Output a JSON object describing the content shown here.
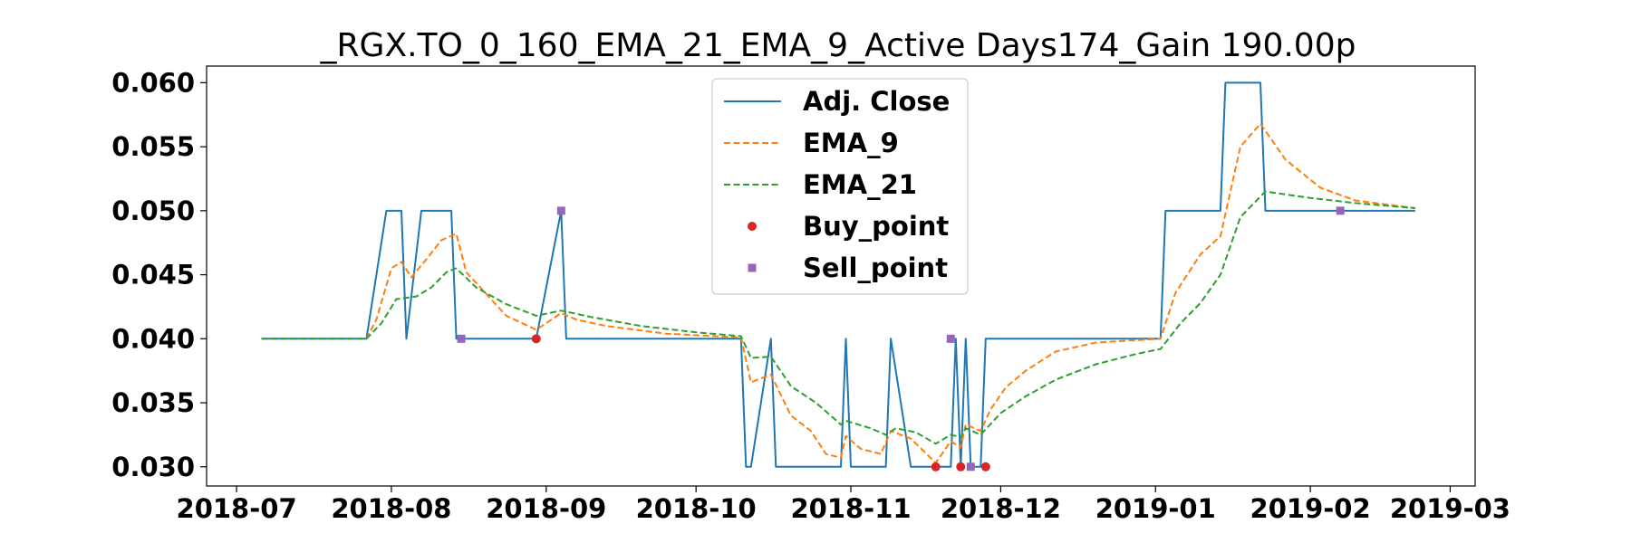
{
  "chart_data": {
    "type": "line",
    "title": "_RGX.TO_0_160_EMA_21_EMA_9_Active Days174_Gain 190.00p",
    "xlabel": "",
    "ylabel": "",
    "x_range": [
      "2018-06-25",
      "2019-03-06"
    ],
    "ylim": [
      0.0285,
      0.0613
    ],
    "x_ticks": [
      "2018-07",
      "2018-08",
      "2018-09",
      "2018-10",
      "2018-11",
      "2018-12",
      "2019-01",
      "2019-02",
      "2019-03"
    ],
    "y_ticks": [
      "0.030",
      "0.035",
      "0.040",
      "0.045",
      "0.050",
      "0.055",
      "0.060"
    ],
    "grid": false,
    "legend_position": "upper-center",
    "series": [
      {
        "name": "Adj. Close",
        "style": "solid",
        "color": "#1f77b4",
        "points": [
          [
            "2018-07-06",
            0.04
          ],
          [
            "2018-07-27",
            0.04
          ],
          [
            "2018-07-31",
            0.05
          ],
          [
            "2018-08-03",
            0.05
          ],
          [
            "2018-08-04",
            0.04
          ],
          [
            "2018-08-07",
            0.05
          ],
          [
            "2018-08-13",
            0.05
          ],
          [
            "2018-08-14",
            0.04
          ],
          [
            "2018-08-30",
            0.04
          ],
          [
            "2018-09-04",
            0.05
          ],
          [
            "2018-09-05",
            0.04
          ],
          [
            "2018-10-10",
            0.04
          ],
          [
            "2018-10-11",
            0.03
          ],
          [
            "2018-10-12",
            0.03
          ],
          [
            "2018-10-16",
            0.04
          ],
          [
            "2018-10-17",
            0.03
          ],
          [
            "2018-10-30",
            0.03
          ],
          [
            "2018-10-31",
            0.04
          ],
          [
            "2018-11-01",
            0.03
          ],
          [
            "2018-11-08",
            0.03
          ],
          [
            "2018-11-09",
            0.04
          ],
          [
            "2018-11-13",
            0.03
          ],
          [
            "2018-11-21",
            0.03
          ],
          [
            "2018-11-22",
            0.04
          ],
          [
            "2018-11-23",
            0.03
          ],
          [
            "2018-11-24",
            0.04
          ],
          [
            "2018-11-25",
            0.03
          ],
          [
            "2018-11-27",
            0.03
          ],
          [
            "2018-11-28",
            0.04
          ],
          [
            "2019-01-02",
            0.04
          ],
          [
            "2019-01-03",
            0.05
          ],
          [
            "2019-01-14",
            0.05
          ],
          [
            "2019-01-15",
            0.06
          ],
          [
            "2019-01-22",
            0.06
          ],
          [
            "2019-01-23",
            0.05
          ],
          [
            "2019-02-22",
            0.05
          ]
        ]
      },
      {
        "name": "EMA_9",
        "style": "dashed",
        "color": "#ff7f0e",
        "points": [
          [
            "2018-07-06",
            0.04
          ],
          [
            "2018-07-27",
            0.04
          ],
          [
            "2018-07-29",
            0.0415
          ],
          [
            "2018-08-01",
            0.0455
          ],
          [
            "2018-08-03",
            0.046
          ],
          [
            "2018-08-05",
            0.0448
          ],
          [
            "2018-08-08",
            0.0462
          ],
          [
            "2018-08-11",
            0.0477
          ],
          [
            "2018-08-14",
            0.0482
          ],
          [
            "2018-08-16",
            0.0452
          ],
          [
            "2018-08-20",
            0.0435
          ],
          [
            "2018-08-24",
            0.0418
          ],
          [
            "2018-08-30",
            0.0407
          ],
          [
            "2018-09-04",
            0.042
          ],
          [
            "2018-09-07",
            0.0415
          ],
          [
            "2018-09-13",
            0.041
          ],
          [
            "2018-09-25",
            0.0404
          ],
          [
            "2018-10-10",
            0.0401
          ],
          [
            "2018-10-12",
            0.0366
          ],
          [
            "2018-10-16",
            0.0372
          ],
          [
            "2018-10-20",
            0.034
          ],
          [
            "2018-10-24",
            0.0328
          ],
          [
            "2018-10-27",
            0.031
          ],
          [
            "2018-10-30",
            0.0307
          ],
          [
            "2018-10-31",
            0.0324
          ],
          [
            "2018-11-03",
            0.0314
          ],
          [
            "2018-11-07",
            0.031
          ],
          [
            "2018-11-09",
            0.0328
          ],
          [
            "2018-11-13",
            0.0322
          ],
          [
            "2018-11-18",
            0.0303
          ],
          [
            "2018-11-21",
            0.032
          ],
          [
            "2018-11-23",
            0.0315
          ],
          [
            "2018-11-24",
            0.0333
          ],
          [
            "2018-11-27",
            0.0328
          ],
          [
            "2018-11-29",
            0.0345
          ],
          [
            "2018-12-02",
            0.0362
          ],
          [
            "2018-12-06",
            0.0375
          ],
          [
            "2018-12-12",
            0.039
          ],
          [
            "2018-12-20",
            0.0397
          ],
          [
            "2019-01-02",
            0.04
          ],
          [
            "2019-01-05",
            0.0436
          ],
          [
            "2019-01-10",
            0.0466
          ],
          [
            "2019-01-14",
            0.048
          ],
          [
            "2019-01-18",
            0.055
          ],
          [
            "2019-01-22",
            0.0568
          ],
          [
            "2019-01-27",
            0.054
          ],
          [
            "2019-02-03",
            0.0518
          ],
          [
            "2019-02-10",
            0.0508
          ],
          [
            "2019-02-22",
            0.0502
          ]
        ]
      },
      {
        "name": "EMA_21",
        "style": "dashed",
        "color": "#2ca02c",
        "points": [
          [
            "2018-07-06",
            0.04
          ],
          [
            "2018-07-27",
            0.04
          ],
          [
            "2018-07-30",
            0.0412
          ],
          [
            "2018-08-02",
            0.0431
          ],
          [
            "2018-08-06",
            0.0433
          ],
          [
            "2018-08-09",
            0.044
          ],
          [
            "2018-08-12",
            0.0452
          ],
          [
            "2018-08-14",
            0.0455
          ],
          [
            "2018-08-18",
            0.044
          ],
          [
            "2018-08-24",
            0.0427
          ],
          [
            "2018-08-30",
            0.0418
          ],
          [
            "2018-09-04",
            0.0422
          ],
          [
            "2018-09-10",
            0.0417
          ],
          [
            "2018-09-20",
            0.041
          ],
          [
            "2018-10-01",
            0.0405
          ],
          [
            "2018-10-10",
            0.0402
          ],
          [
            "2018-10-12",
            0.0385
          ],
          [
            "2018-10-16",
            0.0386
          ],
          [
            "2018-10-20",
            0.0363
          ],
          [
            "2018-10-25",
            0.035
          ],
          [
            "2018-10-30",
            0.0333
          ],
          [
            "2018-10-31",
            0.0336
          ],
          [
            "2018-11-05",
            0.033
          ],
          [
            "2018-11-08",
            0.0325
          ],
          [
            "2018-11-10",
            0.033
          ],
          [
            "2018-11-14",
            0.0327
          ],
          [
            "2018-11-18",
            0.0318
          ],
          [
            "2018-11-21",
            0.0325
          ],
          [
            "2018-11-23",
            0.0323
          ],
          [
            "2018-11-24",
            0.033
          ],
          [
            "2018-11-27",
            0.0325
          ],
          [
            "2018-12-01",
            0.0342
          ],
          [
            "2018-12-06",
            0.0355
          ],
          [
            "2018-12-12",
            0.0368
          ],
          [
            "2018-12-20",
            0.038
          ],
          [
            "2018-12-28",
            0.0388
          ],
          [
            "2019-01-02",
            0.0392
          ],
          [
            "2019-01-06",
            0.0412
          ],
          [
            "2019-01-10",
            0.0428
          ],
          [
            "2019-01-14",
            0.045
          ],
          [
            "2019-01-18",
            0.0495
          ],
          [
            "2019-01-23",
            0.0515
          ],
          [
            "2019-02-01",
            0.051
          ],
          [
            "2019-02-10",
            0.0506
          ],
          [
            "2019-02-22",
            0.0502
          ]
        ]
      },
      {
        "name": "Buy_point",
        "style": "marker-circle",
        "color": "#d62728",
        "points": [
          [
            "2018-08-30",
            0.04
          ],
          [
            "2018-11-18",
            0.03
          ],
          [
            "2018-11-23",
            0.03
          ],
          [
            "2018-11-28",
            0.03
          ]
        ]
      },
      {
        "name": "Sell_point",
        "style": "marker-square",
        "color": "#9467bd",
        "points": [
          [
            "2018-08-15",
            0.04
          ],
          [
            "2018-09-04",
            0.05
          ],
          [
            "2018-11-21",
            0.04
          ],
          [
            "2018-11-25",
            0.03
          ],
          [
            "2019-02-07",
            0.05
          ]
        ]
      }
    ]
  }
}
